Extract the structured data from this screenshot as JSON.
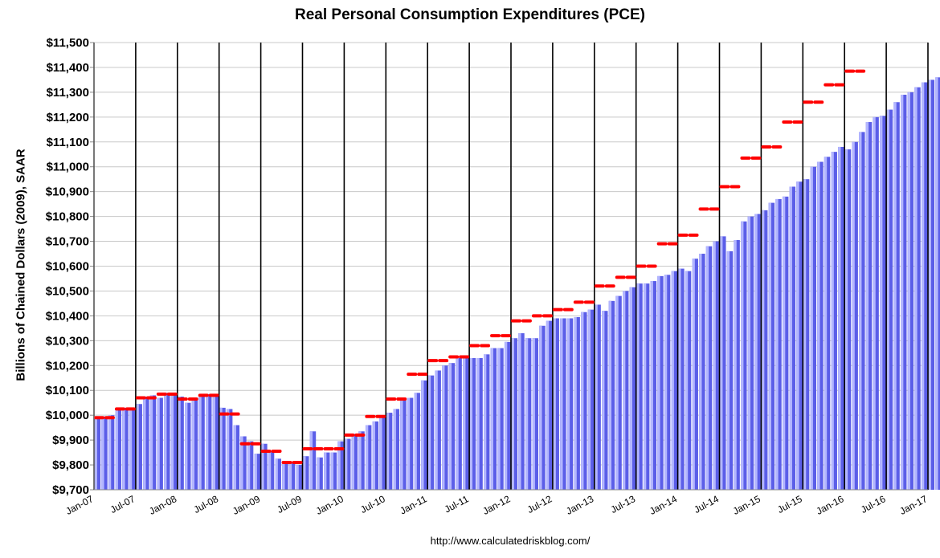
{
  "chart_data": {
    "type": "bar",
    "title": "Real Personal Consumption Expenditures (PCE)",
    "xlabel": "",
    "ylabel": "Billions of Chained Dollars (2009), SAAR",
    "ylim": [
      9700,
      11500
    ],
    "ytick_step": 100,
    "ytick_labels": [
      "$9,700",
      "$9,800",
      "$9,900",
      "$10,000",
      "$10,100",
      "$10,200",
      "$10,300",
      "$10,400",
      "$10,500",
      "$10,600",
      "$10,700",
      "$10,800",
      "$10,900",
      "$11,000",
      "$11,100",
      "$11,200",
      "$11,300",
      "$11,400",
      "$11,500"
    ],
    "xtick_labels": [
      "Jan-07",
      "Jul-07",
      "Jan-08",
      "Jul-08",
      "Jan-09",
      "Jul-09",
      "Jan-10",
      "Jul-10",
      "Jan-11",
      "Jul-11",
      "Jan-12",
      "Jul-12",
      "Jan-13",
      "Jul-13",
      "Jan-14",
      "Jul-14",
      "Jan-15",
      "Jul-15",
      "Jan-16",
      "Jul-16",
      "Jan-17"
    ],
    "grid": "vertical lines every 6 months",
    "bar_color": "#5b5ee8",
    "bar_highlight": "#b3b6ff",
    "quarterly_marker_color": "#ff0000",
    "months_start": "Jan-07",
    "monthly_values": [
      9985,
      9995,
      10000,
      10020,
      10030,
      10025,
      10045,
      10075,
      10080,
      10070,
      10090,
      10085,
      10075,
      10050,
      10060,
      10075,
      10085,
      10075,
      10030,
      10025,
      9960,
      9915,
      9895,
      9845,
      9885,
      9855,
      9825,
      9815,
      9810,
      9800,
      9835,
      9935,
      9830,
      9850,
      9850,
      9895,
      9905,
      9925,
      9935,
      9960,
      9975,
      9995,
      10010,
      10025,
      10060,
      10070,
      10090,
      10140,
      10160,
      10180,
      10200,
      10210,
      10230,
      10240,
      10230,
      10230,
      10245,
      10270,
      10270,
      10295,
      10310,
      10330,
      10310,
      10310,
      10360,
      10380,
      10390,
      10390,
      10390,
      10395,
      10415,
      10425,
      10445,
      10420,
      10460,
      10480,
      10500,
      10515,
      10530,
      10530,
      10540,
      10560,
      10565,
      10580,
      10590,
      10580,
      10630,
      10650,
      10680,
      10700,
      10720,
      10660,
      10705,
      10780,
      10800,
      10810,
      10825,
      10855,
      10870,
      10880,
      10920,
      10940,
      10950,
      11000,
      11020,
      11040,
      11060,
      11080,
      11070,
      11100,
      11140,
      11180,
      11200,
      11205,
      11230,
      11260,
      11290,
      11300,
      11320,
      11340,
      11350,
      11360,
      11380,
      11395,
      11400,
      11470
    ],
    "quarterly_averages": [
      9990,
      10025,
      10070,
      10085,
      10065,
      10080,
      10005,
      9885,
      9855,
      9810,
      9865,
      9865,
      9920,
      9995,
      10065,
      10165,
      10220,
      10235,
      10280,
      10320,
      10380,
      10400,
      10425,
      10455,
      10520,
      10555,
      10600,
      10690,
      10725,
      10830,
      10920,
      11035,
      11080,
      11180,
      11260,
      11330,
      11385
    ]
  }
}
